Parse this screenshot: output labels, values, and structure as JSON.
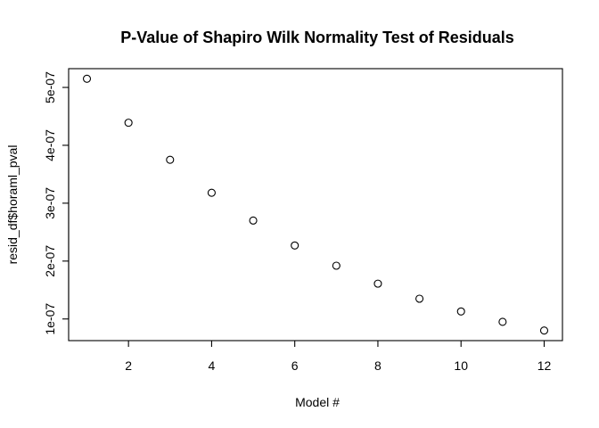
{
  "chart_data": {
    "type": "scatter",
    "title": "P-Value of Shapiro Wilk Normality Test of Residuals",
    "xlabel": "Model #",
    "ylabel": "resid_df$horaml_pval",
    "x": [
      1,
      2,
      3,
      4,
      5,
      6,
      7,
      8,
      9,
      10,
      11,
      12
    ],
    "y": [
      5.15e-07,
      4.39e-07,
      3.75e-07,
      3.18e-07,
      2.7e-07,
      2.27e-07,
      1.92e-07,
      1.61e-07,
      1.35e-07,
      1.13e-07,
      9.5e-08,
      8e-08
    ],
    "xlim": [
      0.56,
      12.44
    ],
    "ylim": [
      6.26e-08,
      5.324e-07
    ],
    "xticks": [
      2,
      4,
      6,
      8,
      10,
      12
    ],
    "xtick_labels": [
      "2",
      "4",
      "6",
      "8",
      "10",
      "12"
    ],
    "yticks": [
      1e-07,
      2e-07,
      3e-07,
      4e-07,
      5e-07
    ],
    "ytick_labels": [
      "1e-07",
      "2e-07",
      "3e-07",
      "4e-07",
      "5e-07"
    ],
    "grid": false,
    "legend": false,
    "marker": "open-circle",
    "colors": {
      "marker": "#000000",
      "background": "#ffffff"
    }
  }
}
